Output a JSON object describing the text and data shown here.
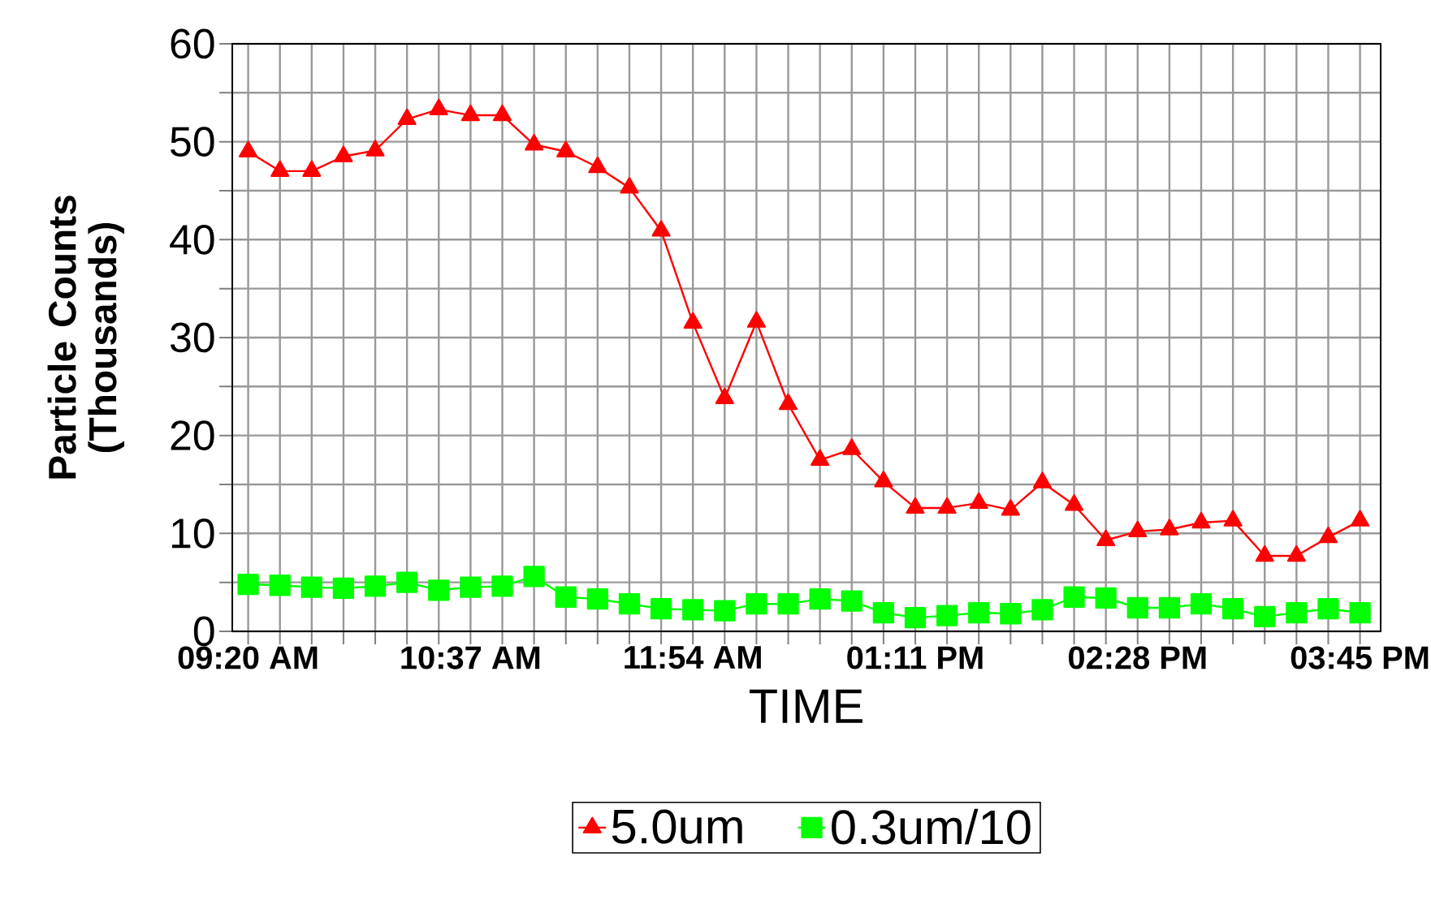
{
  "chart_data": {
    "type": "line",
    "xlabel": "TIME",
    "ylabel": "Particle Counts (Thousands)",
    "categories": [
      "09:20 AM",
      null,
      null,
      null,
      null,
      null,
      null,
      "10:37 AM",
      null,
      null,
      null,
      null,
      null,
      null,
      "11:54 AM",
      null,
      null,
      null,
      null,
      null,
      null,
      "01:11 PM",
      null,
      null,
      null,
      null,
      null,
      null,
      "02:28 PM",
      null,
      null,
      null,
      null,
      null,
      null,
      "03:45 PM"
    ],
    "series": [
      {
        "name": "5.0um",
        "color": "#ff0000",
        "marker": "triangle",
        "values": [
          49.0,
          47.0,
          47.0,
          48.5,
          49.1,
          52.3,
          53.3,
          52.7,
          52.7,
          49.7,
          49.0,
          47.4,
          45.3,
          40.9,
          31.5,
          23.8,
          31.6,
          23.2,
          17.5,
          18.6,
          15.3,
          12.6,
          12.6,
          13.1,
          12.4,
          15.2,
          12.9,
          9.3,
          10.2,
          10.4,
          11.1,
          11.3,
          7.7,
          7.7,
          9.6,
          11.3
        ]
      },
      {
        "name": "0.3um/10",
        "color": "#00ff00",
        "marker": "square",
        "values": [
          4.8,
          4.7,
          4.5,
          4.4,
          4.6,
          5.0,
          4.2,
          4.5,
          4.6,
          5.6,
          3.5,
          3.3,
          2.8,
          2.3,
          2.2,
          2.1,
          2.8,
          2.8,
          3.3,
          3.1,
          1.9,
          1.4,
          1.6,
          1.9,
          1.8,
          2.2,
          3.5,
          3.4,
          2.4,
          2.4,
          2.8,
          2.3,
          1.5,
          1.9,
          2.3,
          1.9
        ]
      }
    ],
    "ylim": [
      0,
      60
    ],
    "yticks": [
      0,
      10,
      20,
      30,
      40,
      50,
      60
    ],
    "grid": true,
    "legend": "bottom"
  }
}
